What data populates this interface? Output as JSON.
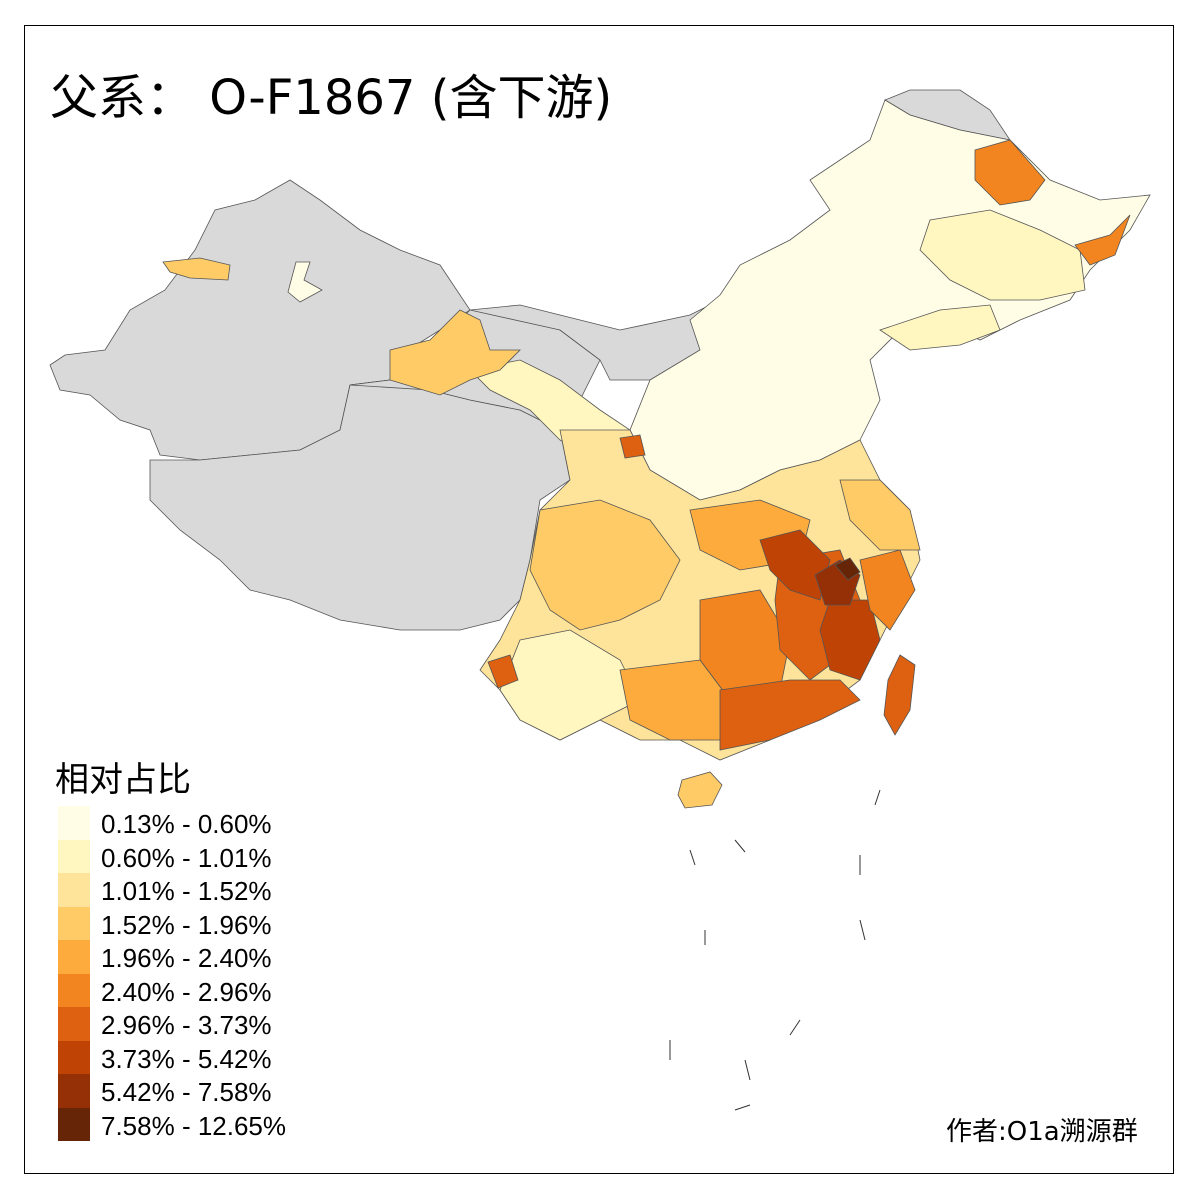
{
  "title": "父系： O-F1867 (含下游)",
  "legend": {
    "title": "相对占比",
    "items": [
      {
        "label": "0.13% - 0.60%",
        "color": "#fffde6"
      },
      {
        "label": "0.60% - 1.01%",
        "color": "#fff6c0"
      },
      {
        "label": "1.01% - 1.52%",
        "color": "#fee49a"
      },
      {
        "label": "1.52% - 1.96%",
        "color": "#fecb66"
      },
      {
        "label": "1.96% - 2.40%",
        "color": "#fdab3c"
      },
      {
        "label": "2.40% - 2.96%",
        "color": "#f2851f"
      },
      {
        "label": "2.96% - 3.73%",
        "color": "#de6011"
      },
      {
        "label": "3.73% - 5.42%",
        "color": "#bf4304"
      },
      {
        "label": "5.42% - 7.58%",
        "color": "#952f05"
      },
      {
        "label": "7.58% - 12.65%",
        "color": "#662506"
      }
    ]
  },
  "no_data_color": "#d9d9d9",
  "author": "作者:O1a溯源群"
}
